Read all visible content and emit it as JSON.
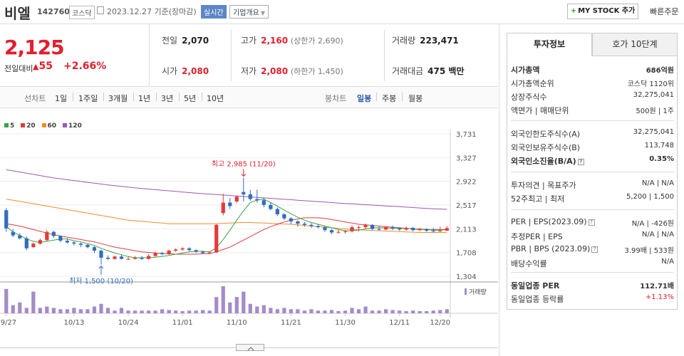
{
  "header": {
    "name": "비엘",
    "code": "142760",
    "market": "코스닥",
    "date_text": "2023.12.27  기준(장마감)",
    "realtime_label": "실시간",
    "corp_label": "기업개요",
    "mystock_label": "MY STOCK 추가",
    "quick_order_label": "빠른주문"
  },
  "price": {
    "current": "2,125",
    "change_label": "전일대비",
    "change_value": "55",
    "change_pct": "+2.66%"
  },
  "stats": {
    "prev_label": "전일",
    "prev_value": "2,070",
    "high_label": "고가",
    "high_value": "2,160",
    "upper_limit": "(상한가 2,690)",
    "volume_label": "거래량",
    "volume_value": "223,471",
    "open_label": "시가",
    "open_value": "2,080",
    "low_label": "저가",
    "low_value": "2,080",
    "lower_limit": "(하한가 1,450)",
    "amount_label": "거래대금",
    "amount_value": "475 백만"
  },
  "periods": {
    "line_chart": "선차트",
    "items": [
      "1일",
      "1주일",
      "3개월",
      "1년",
      "3년",
      "5년",
      "10년"
    ],
    "candle_chart": "봉차트",
    "candle_items": [
      "일봉",
      "주봉",
      "월봉"
    ]
  },
  "legend": [
    {
      "label": "5",
      "color": "#3aa345"
    },
    {
      "label": "20",
      "color": "#e23b3b"
    },
    {
      "label": "60",
      "color": "#f08c2a"
    },
    {
      "label": "120",
      "color": "#9b59b6"
    }
  ],
  "annotations": {
    "max": "최고 2,985 (11/20)",
    "min": "최저 1,500 (10/20)",
    "volume_label": "거래량"
  },
  "chart_data": {
    "type": "candlestick",
    "y_ticks": [
      "3,731",
      "3,327",
      "2,922",
      "2,517",
      "2,113",
      "1,708",
      "1,304"
    ],
    "ylim": [
      1304,
      3731
    ],
    "x_ticks": [
      "09/27",
      "10/13",
      "10/24",
      "11/01",
      "11/10",
      "11/21",
      "11/30",
      "12/11",
      "12/20"
    ],
    "up_color": "#e23b3b",
    "down_color": "#2f6dc0",
    "volume_color": "#a48cc8",
    "candles": [
      [
        2430,
        2120,
        2470,
        2060
      ],
      [
        2060,
        2000,
        2110,
        1970
      ],
      [
        2000,
        1950,
        2040,
        1930
      ],
      [
        1950,
        1780,
        1980,
        1750
      ],
      [
        1800,
        1860,
        1880,
        1790
      ],
      [
        1860,
        1920,
        1950,
        1840
      ],
      [
        1920,
        2060,
        2090,
        1900
      ],
      [
        2060,
        1990,
        2080,
        1960
      ],
      [
        1990,
        1910,
        2000,
        1880
      ],
      [
        1910,
        1880,
        1950,
        1860
      ],
      [
        1880,
        1860,
        1900,
        1830
      ],
      [
        1860,
        1840,
        1880,
        1800
      ],
      [
        1840,
        1800,
        1860,
        1780
      ],
      [
        1800,
        1740,
        1820,
        1700
      ],
      [
        1740,
        1620,
        1760,
        1500
      ],
      [
        1620,
        1600,
        1660,
        1580
      ],
      [
        1600,
        1640,
        1660,
        1590
      ],
      [
        1640,
        1600,
        1670,
        1590
      ],
      [
        1600,
        1600,
        1640,
        1580
      ],
      [
        1600,
        1620,
        1650,
        1590
      ],
      [
        1620,
        1600,
        1650,
        1580
      ],
      [
        1600,
        1650,
        1680,
        1590
      ],
      [
        1650,
        1700,
        1720,
        1640
      ],
      [
        1700,
        1680,
        1720,
        1660
      ],
      [
        1680,
        1740,
        1760,
        1670
      ],
      [
        1740,
        1760,
        1780,
        1720
      ],
      [
        1760,
        1780,
        1800,
        1740
      ],
      [
        1780,
        1750,
        1800,
        1730
      ],
      [
        1750,
        1720,
        1760,
        1700
      ],
      [
        1720,
        1700,
        1740,
        1680
      ],
      [
        1700,
        1710,
        1730,
        1690
      ],
      [
        1710,
        2180,
        2190,
        1700
      ],
      [
        2380,
        2560,
        2710,
        2340
      ],
      [
        2560,
        2500,
        2640,
        2450
      ],
      [
        2580,
        2660,
        2680,
        2550
      ],
      [
        2740,
        2700,
        2985,
        2580
      ],
      [
        2700,
        2620,
        2780,
        2590
      ],
      [
        2620,
        2600,
        2780,
        2560
      ],
      [
        2600,
        2520,
        2640,
        2480
      ],
      [
        2520,
        2450,
        2560,
        2430
      ],
      [
        2450,
        2360,
        2480,
        2330
      ],
      [
        2360,
        2290,
        2380,
        2260
      ],
      [
        2290,
        2240,
        2310,
        2190
      ],
      [
        2240,
        2200,
        2260,
        2150
      ],
      [
        2200,
        2180,
        2230,
        2150
      ],
      [
        2180,
        2160,
        2210,
        2130
      ],
      [
        2160,
        2140,
        2190,
        2120
      ],
      [
        2140,
        2090,
        2160,
        2060
      ],
      [
        2090,
        2050,
        2110,
        2020
      ],
      [
        2050,
        2060,
        2100,
        2030
      ],
      [
        2060,
        2070,
        2090,
        2030
      ],
      [
        2070,
        2140,
        2170,
        2050
      ],
      [
        2140,
        2140,
        2170,
        2070
      ],
      [
        2140,
        2180,
        2200,
        2110
      ],
      [
        2180,
        2110,
        2190,
        2090
      ],
      [
        2110,
        2100,
        2150,
        2080
      ],
      [
        2100,
        2140,
        2160,
        2090
      ],
      [
        2140,
        2120,
        2170,
        2090
      ],
      [
        2120,
        2100,
        2140,
        2080
      ],
      [
        2100,
        2130,
        2150,
        2080
      ],
      [
        2130,
        2090,
        2140,
        2070
      ],
      [
        2090,
        2110,
        2130,
        2070
      ],
      [
        2110,
        2080,
        2120,
        2060
      ],
      [
        2080,
        2070,
        2130,
        2050
      ],
      [
        2070,
        2080,
        2150,
        2060
      ],
      [
        2080,
        2125,
        2160,
        2080
      ]
    ],
    "volumes": [
      90,
      30,
      40,
      20,
      80,
      20,
      25,
      20,
      15,
      15,
      20,
      15,
      15,
      25,
      35,
      20,
      10,
      20,
      10,
      10,
      10,
      10,
      10,
      15,
      12,
      10,
      8,
      10,
      10,
      12,
      10,
      60,
      100,
      40,
      60,
      80,
      35,
      25,
      30,
      20,
      15,
      20,
      15,
      15,
      10,
      15,
      10,
      10,
      12,
      8,
      10,
      20,
      15,
      25,
      10,
      10,
      15,
      12,
      10,
      8,
      10,
      8,
      8,
      10,
      12,
      15
    ],
    "ma_5": [
      2150,
      2060,
      2000,
      1940,
      1900,
      1880,
      1900,
      1920,
      1940,
      1940,
      1910,
      1890,
      1860,
      1830,
      1780,
      1740,
      1700,
      1670,
      1640,
      1620,
      1620,
      1620,
      1630,
      1640,
      1660,
      1680,
      1700,
      1720,
      1730,
      1730,
      1720,
      1790,
      1930,
      2090,
      2260,
      2420,
      2560,
      2600,
      2620,
      2560,
      2500,
      2430,
      2370,
      2310,
      2260,
      2220,
      2190,
      2160,
      2130,
      2100,
      2080,
      2080,
      2090,
      2110,
      2130,
      2130,
      2130,
      2120,
      2120,
      2120,
      2110,
      2110,
      2100,
      2090,
      2090,
      2100
    ],
    "ma_20": [
      2200,
      2180,
      2160,
      2130,
      2100,
      2070,
      2040,
      2010,
      1990,
      1970,
      1950,
      1930,
      1910,
      1890,
      1860,
      1830,
      1800,
      1780,
      1760,
      1740,
      1720,
      1710,
      1700,
      1690,
      1690,
      1680,
      1680,
      1680,
      1680,
      1690,
      1690,
      1720,
      1760,
      1800,
      1860,
      1920,
      1980,
      2040,
      2100,
      2150,
      2190,
      2230,
      2260,
      2280,
      2300,
      2300,
      2300,
      2290,
      2270,
      2250,
      2230,
      2210,
      2190,
      2180,
      2170,
      2160,
      2150,
      2140,
      2130,
      2120,
      2110,
      2100,
      2100,
      2100,
      2100,
      2100
    ],
    "ma_60": [
      2620,
      2600,
      2580,
      2560,
      2540,
      2520,
      2500,
      2480,
      2460,
      2440,
      2420,
      2400,
      2380,
      2360,
      2340,
      2320,
      2300,
      2280,
      2260,
      2250,
      2240,
      2230,
      2220,
      2210,
      2200,
      2200,
      2200,
      2200,
      2200,
      2200,
      2200,
      2200,
      2205,
      2210,
      2215,
      2220,
      2220,
      2215,
      2210,
      2205,
      2200,
      2195,
      2190,
      2180,
      2170,
      2160,
      2150,
      2140,
      2130,
      2120,
      2110,
      2100,
      2095,
      2090,
      2085,
      2080,
      2075,
      2070,
      2065,
      2060,
      2055,
      2050,
      2050,
      2050,
      2050,
      2050
    ],
    "ma_120": [
      3120,
      3100,
      3080,
      3060,
      3040,
      3020,
      3000,
      2980,
      2965,
      2950,
      2935,
      2920,
      2905,
      2890,
      2875,
      2860,
      2848,
      2836,
      2824,
      2812,
      2800,
      2790,
      2780,
      2770,
      2760,
      2750,
      2740,
      2730,
      2720,
      2712,
      2704,
      2696,
      2688,
      2680,
      2672,
      2664,
      2656,
      2648,
      2640,
      2632,
      2624,
      2616,
      2608,
      2600,
      2592,
      2584,
      2576,
      2568,
      2560,
      2552,
      2545,
      2538,
      2531,
      2524,
      2517,
      2510,
      2503,
      2496,
      2489,
      2482,
      2475,
      2468,
      2461,
      2455,
      2450,
      2445
    ]
  },
  "investment": {
    "tabs": [
      "투자정보",
      "호가 10단계"
    ],
    "rows": [
      {
        "label": "시가총액",
        "value": "686억원",
        "bold": true
      },
      {
        "label": "시가총액순위",
        "value": "코스닥 1120위"
      },
      {
        "label": "상장주식수",
        "value": "32,275,041"
      },
      {
        "label": "액면가 | 매매단위",
        "value": "500원 | 1주"
      },
      {
        "label": "외국인한도주식수(A)",
        "value": "32,275,041"
      },
      {
        "label": "외국인보유주식수(B)",
        "value": "113,748"
      },
      {
        "label": "외국인소진율(B/A)",
        "value": "0.35%",
        "bold": true
      },
      {
        "label": "투자의견 | 목표주가",
        "value": "N/A | N/A"
      },
      {
        "label": "52주최고 | 최저",
        "value": "5,200 | 1,500"
      },
      {
        "label": "PER | EPS(2023.09)",
        "value": "N/A | -426원"
      },
      {
        "label": "추정PER | EPS",
        "value": "N/A | N/A"
      },
      {
        "label": "PBR | BPS (2023.09)",
        "value": "3.99배 | 533원"
      },
      {
        "label": "배당수익률",
        "value": "N/A"
      },
      {
        "label": "동일업종 PER",
        "value": "112.71배",
        "bold": true
      },
      {
        "label": "동일업종 등락률",
        "value": "+1.13%",
        "red": true
      }
    ]
  }
}
